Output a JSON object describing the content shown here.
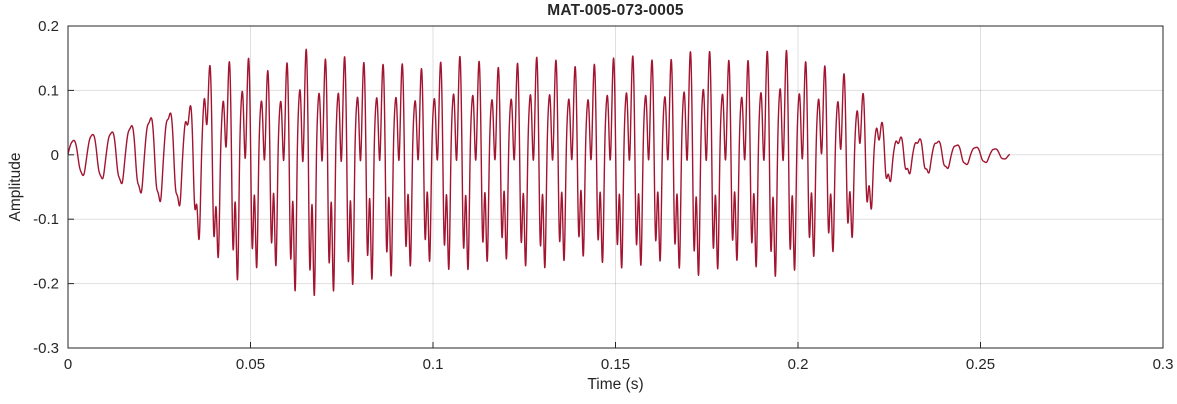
{
  "figure": {
    "title": "MAT-005-073-0005",
    "xlabel": "Time (s)",
    "ylabel": "Amplitude"
  },
  "chart_data": {
    "type": "line",
    "title": "MAT-005-073-0005",
    "xlabel": "Time (s)",
    "ylabel": "Amplitude",
    "xlim": [
      0,
      0.3
    ],
    "ylim": [
      -0.3,
      0.2
    ],
    "xticks": [
      0,
      0.05,
      0.1,
      0.15,
      0.2,
      0.25,
      0.3
    ],
    "xtick_labels": [
      "0",
      "0.05",
      "0.1",
      "0.15",
      "0.2",
      "0.25",
      "0.3"
    ],
    "yticks": [
      -0.3,
      -0.2,
      -0.1,
      0,
      0.1,
      0.2
    ],
    "ytick_labels": [
      "-0.3",
      "-0.2",
      "-0.1",
      "0",
      "0.1",
      "0.2"
    ],
    "grid": true,
    "legend": "none",
    "line_color": "#A2142F",
    "axis_color": "#262626",
    "grid_color": "rgba(38,38,38,0.15)",
    "background_color": "#ffffff",
    "peak_positive": 0.17,
    "peak_negative": -0.21,
    "signal_end_s": 0.258,
    "waveform": {
      "description": "speech-like audio waveform, amplitude envelope over time with harmonic-rich carrier",
      "duration": 0.258,
      "fundamental_hz": 190,
      "harmonics": [
        [
          1,
          1.0,
          0.0
        ],
        [
          2,
          0.5,
          2.0
        ],
        [
          3,
          0.6,
          0.6
        ],
        [
          4,
          0.22,
          3.1
        ],
        [
          5,
          0.12,
          4.4
        ]
      ],
      "envelope": [
        [
          0,
          0.018
        ],
        [
          0.004,
          0.03
        ],
        [
          0.01,
          0.04
        ],
        [
          0.016,
          0.05
        ],
        [
          0.022,
          0.06
        ],
        [
          0.028,
          0.075
        ],
        [
          0.033,
          0.09
        ],
        [
          0.038,
          0.165
        ],
        [
          0.042,
          0.13
        ],
        [
          0.047,
          0.16
        ],
        [
          0.052,
          0.15
        ],
        [
          0.058,
          0.145
        ],
        [
          0.064,
          0.16
        ],
        [
          0.07,
          0.15
        ],
        [
          0.075,
          0.175
        ],
        [
          0.08,
          0.155
        ],
        [
          0.086,
          0.135
        ],
        [
          0.092,
          0.145
        ],
        [
          0.1,
          0.155
        ],
        [
          0.11,
          0.145
        ],
        [
          0.12,
          0.155
        ],
        [
          0.13,
          0.145
        ],
        [
          0.14,
          0.155
        ],
        [
          0.15,
          0.145
        ],
        [
          0.16,
          0.165
        ],
        [
          0.17,
          0.155
        ],
        [
          0.18,
          0.165
        ],
        [
          0.19,
          0.155
        ],
        [
          0.2,
          0.165
        ],
        [
          0.207,
          0.155
        ],
        [
          0.212,
          0.13
        ],
        [
          0.218,
          0.1
        ],
        [
          0.222,
          0.07
        ],
        [
          0.226,
          0.04
        ],
        [
          0.23,
          0.03
        ],
        [
          0.236,
          0.026
        ],
        [
          0.242,
          0.02
        ],
        [
          0.248,
          0.015
        ],
        [
          0.254,
          0.01
        ],
        [
          0.258,
          0.004
        ]
      ],
      "neg_scale": [
        [
          0,
          1.0
        ],
        [
          0.03,
          1.0
        ],
        [
          0.05,
          1.2
        ],
        [
          0.06,
          1.3
        ],
        [
          0.075,
          1.35
        ],
        [
          0.09,
          1.25
        ],
        [
          0.1,
          1.15
        ],
        [
          0.15,
          1.1
        ],
        [
          0.2,
          1.1
        ],
        [
          0.22,
          1.0
        ],
        [
          0.258,
          1.0
        ]
      ],
      "brightness": [
        [
          0,
          0.08
        ],
        [
          0.03,
          0.2
        ],
        [
          0.045,
          0.9
        ],
        [
          0.05,
          1.0
        ],
        [
          0.2,
          1.0
        ],
        [
          0.215,
          0.8
        ],
        [
          0.225,
          0.4
        ],
        [
          0.24,
          0.18
        ],
        [
          0.258,
          0.1
        ]
      ],
      "tremor": {
        "freq_hz": 47,
        "depth": 0.08,
        "phase": 1.0
      }
    }
  }
}
